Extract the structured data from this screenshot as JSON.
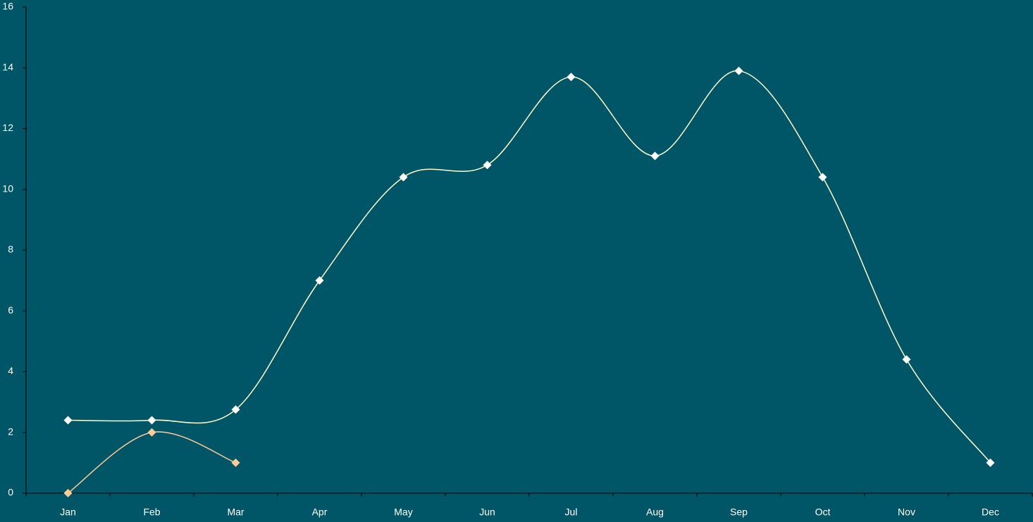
{
  "chart_data": {
    "type": "line",
    "categories": [
      "Jan",
      "Feb",
      "Mar",
      "Apr",
      "May",
      "Jun",
      "Jul",
      "Aug",
      "Sep",
      "Oct",
      "Nov",
      "Dec"
    ],
    "series": [
      {
        "color": "#ffffcc",
        "marker_color": "#ffffff",
        "values": [
          2.4,
          2.4,
          2.75,
          7.0,
          10.4,
          10.8,
          13.7,
          11.1,
          13.9,
          10.4,
          4.4,
          1.0
        ]
      },
      {
        "color": "#ffcc99",
        "marker_color": "#ffcc99",
        "values": [
          0,
          2,
          1,
          null,
          null,
          null,
          null,
          null,
          null,
          null,
          null,
          null
        ]
      }
    ],
    "ylim": [
      0,
      16
    ],
    "yticks": [
      0,
      2,
      4,
      6,
      8,
      10,
      12,
      14,
      16
    ],
    "smooth": true
  }
}
